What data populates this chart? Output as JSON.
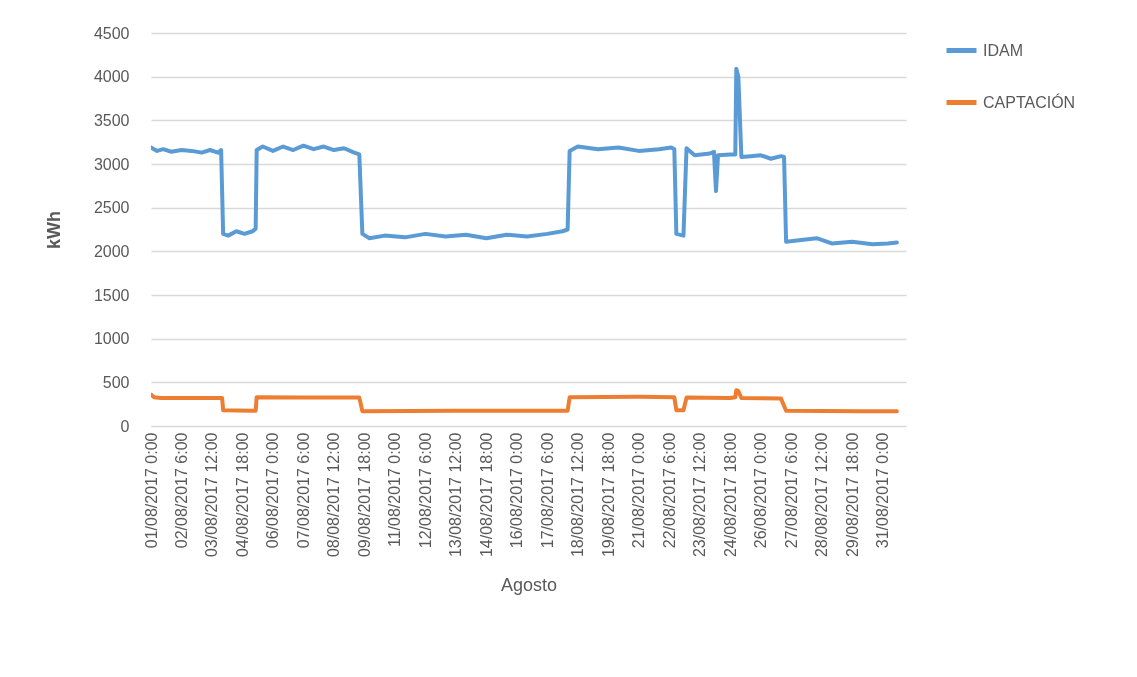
{
  "chart_data": {
    "type": "line",
    "ylabel": "kWh",
    "xlabel": "Agosto",
    "legend": "right",
    "grid": "y",
    "ylim": [
      0,
      4500
    ],
    "yticks": [
      0,
      500,
      1000,
      1500,
      2000,
      2500,
      3000,
      3500,
      4000,
      4500
    ],
    "xlim": [
      "2017-08-01T00:00",
      "2017-08-31T23:00"
    ],
    "xticks": [
      {
        "value": "2017-08-01T00:00",
        "label": "01/08/2017 0:00"
      },
      {
        "value": "2017-08-02T06:00",
        "label": "02/08/2017 6:00"
      },
      {
        "value": "2017-08-03T12:00",
        "label": "03/08/2017 12:00"
      },
      {
        "value": "2017-08-04T18:00",
        "label": "04/08/2017 18:00"
      },
      {
        "value": "2017-08-06T00:00",
        "label": "06/08/2017 0:00"
      },
      {
        "value": "2017-08-07T06:00",
        "label": "07/08/2017 6:00"
      },
      {
        "value": "2017-08-08T12:00",
        "label": "08/08/2017 12:00"
      },
      {
        "value": "2017-08-09T18:00",
        "label": "09/08/2017 18:00"
      },
      {
        "value": "2017-08-11T00:00",
        "label": "11/08/2017 0:00"
      },
      {
        "value": "2017-08-12T06:00",
        "label": "12/08/2017 6:00"
      },
      {
        "value": "2017-08-13T12:00",
        "label": "13/08/2017 12:00"
      },
      {
        "value": "2017-08-14T18:00",
        "label": "14/08/2017 18:00"
      },
      {
        "value": "2017-08-16T00:00",
        "label": "16/08/2017 0:00"
      },
      {
        "value": "2017-08-17T06:00",
        "label": "17/08/2017 6:00"
      },
      {
        "value": "2017-08-18T12:00",
        "label": "18/08/2017 12:00"
      },
      {
        "value": "2017-08-19T18:00",
        "label": "19/08/2017 18:00"
      },
      {
        "value": "2017-08-21T00:00",
        "label": "21/08/2017 0:00"
      },
      {
        "value": "2017-08-22T06:00",
        "label": "22/08/2017 6:00"
      },
      {
        "value": "2017-08-23T12:00",
        "label": "23/08/2017 12:00"
      },
      {
        "value": "2017-08-24T18:00",
        "label": "24/08/2017 18:00"
      },
      {
        "value": "2017-08-26T00:00",
        "label": "26/08/2017 0:00"
      },
      {
        "value": "2017-08-27T06:00",
        "label": "27/08/2017 6:00"
      },
      {
        "value": "2017-08-28T12:00",
        "label": "28/08/2017 12:00"
      },
      {
        "value": "2017-08-29T18:00",
        "label": "29/08/2017 18:00"
      },
      {
        "value": "2017-08-31T00:00",
        "label": "31/08/2017 0:00"
      }
    ],
    "series": [
      {
        "name": "IDAM",
        "color": "#5b9bd5",
        "x": [
          "2017-08-01T00:00",
          "2017-08-01T06:00",
          "2017-08-01T12:00",
          "2017-08-01T20:00",
          "2017-08-02T06:00",
          "2017-08-02T16:00",
          "2017-08-03T02:00",
          "2017-08-03T10:00",
          "2017-08-03T18:00",
          "2017-08-03T21:00",
          "2017-08-03T23:00",
          "2017-08-04T04:00",
          "2017-08-04T12:00",
          "2017-08-04T20:00",
          "2017-08-05T04:00",
          "2017-08-05T07:00",
          "2017-08-05T08:00",
          "2017-08-05T14:00",
          "2017-08-06T00:00",
          "2017-08-06T10:00",
          "2017-08-06T20:00",
          "2017-08-07T06:00",
          "2017-08-07T16:00",
          "2017-08-08T02:00",
          "2017-08-08T12:00",
          "2017-08-08T22:00",
          "2017-08-09T08:00",
          "2017-08-09T13:00",
          "2017-08-09T16:00",
          "2017-08-09T23:00",
          "2017-08-10T14:00",
          "2017-08-11T10:00",
          "2017-08-12T06:00",
          "2017-08-13T02:00",
          "2017-08-13T22:00",
          "2017-08-14T18:00",
          "2017-08-15T14:00",
          "2017-08-16T10:00",
          "2017-08-17T06:00",
          "2017-08-17T21:00",
          "2017-08-18T02:00",
          "2017-08-18T04:00",
          "2017-08-18T12:00",
          "2017-08-19T08:00",
          "2017-08-20T04:00",
          "2017-08-21T00:00",
          "2017-08-21T20:00",
          "2017-08-22T08:00",
          "2017-08-22T11:00",
          "2017-08-22T13:00",
          "2017-08-22T20:00",
          "2017-08-22T23:00",
          "2017-08-23T07:00",
          "2017-08-23T22:00",
          "2017-08-24T02:00",
          "2017-08-24T04:00",
          "2017-08-24T06:00",
          "2017-08-24T18:00",
          "2017-08-24T23:00",
          "2017-08-25T00:00",
          "2017-08-25T02:00",
          "2017-08-25T05:00",
          "2017-08-25T14:00",
          "2017-08-26T00:00",
          "2017-08-26T10:00",
          "2017-08-26T20:00",
          "2017-08-26T23:00",
          "2017-08-27T01:00",
          "2017-08-27T16:00",
          "2017-08-28T07:00",
          "2017-08-28T22:00",
          "2017-08-29T18:00",
          "2017-08-30T14:00",
          "2017-08-31T05:00",
          "2017-08-31T14:00"
        ],
        "values": [
          3190,
          3150,
          3170,
          3140,
          3160,
          3150,
          3130,
          3160,
          3130,
          3160,
          2200,
          2180,
          2230,
          2200,
          2230,
          2260,
          3160,
          3200,
          3150,
          3200,
          3160,
          3210,
          3170,
          3200,
          3160,
          3180,
          3130,
          3110,
          2200,
          2150,
          2180,
          2160,
          2200,
          2170,
          2190,
          2150,
          2190,
          2170,
          2200,
          2230,
          2250,
          3150,
          3200,
          3170,
          3190,
          3150,
          3170,
          3190,
          3170,
          2200,
          2180,
          3180,
          3100,
          3120,
          3140,
          2690,
          3100,
          3110,
          3110,
          4090,
          4000,
          3080,
          3090,
          3100,
          3060,
          3090,
          3080,
          2110,
          2130,
          2150,
          2090,
          2110,
          2080,
          2090,
          2100
        ]
      },
      {
        "name": "CAPTACIÓN",
        "color": "#ed7d31",
        "x": [
          "2017-08-01T00:00",
          "2017-08-01T03:00",
          "2017-08-01T10:00",
          "2017-08-02T16:00",
          "2017-08-03T22:00",
          "2017-08-03T23:00",
          "2017-08-05T04:00",
          "2017-08-05T07:00",
          "2017-08-05T08:00",
          "2017-08-07T06:00",
          "2017-08-09T13:00",
          "2017-08-09T16:00",
          "2017-08-13T12:00",
          "2017-08-18T02:00",
          "2017-08-18T04:00",
          "2017-08-21T00:00",
          "2017-08-22T11:00",
          "2017-08-22T13:00",
          "2017-08-22T20:00",
          "2017-08-22T23:00",
          "2017-08-24T18:00",
          "2017-08-24T23:00",
          "2017-08-25T00:00",
          "2017-08-25T02:00",
          "2017-08-25T05:00",
          "2017-08-26T20:00",
          "2017-08-27T01:00",
          "2017-08-30T04:00",
          "2017-08-31T14:00"
        ],
        "values": [
          360,
          330,
          320,
          320,
          320,
          180,
          175,
          175,
          330,
          325,
          325,
          170,
          175,
          175,
          330,
          335,
          330,
          180,
          180,
          325,
          320,
          330,
          410,
          400,
          320,
          315,
          175,
          170,
          170
        ]
      }
    ]
  }
}
